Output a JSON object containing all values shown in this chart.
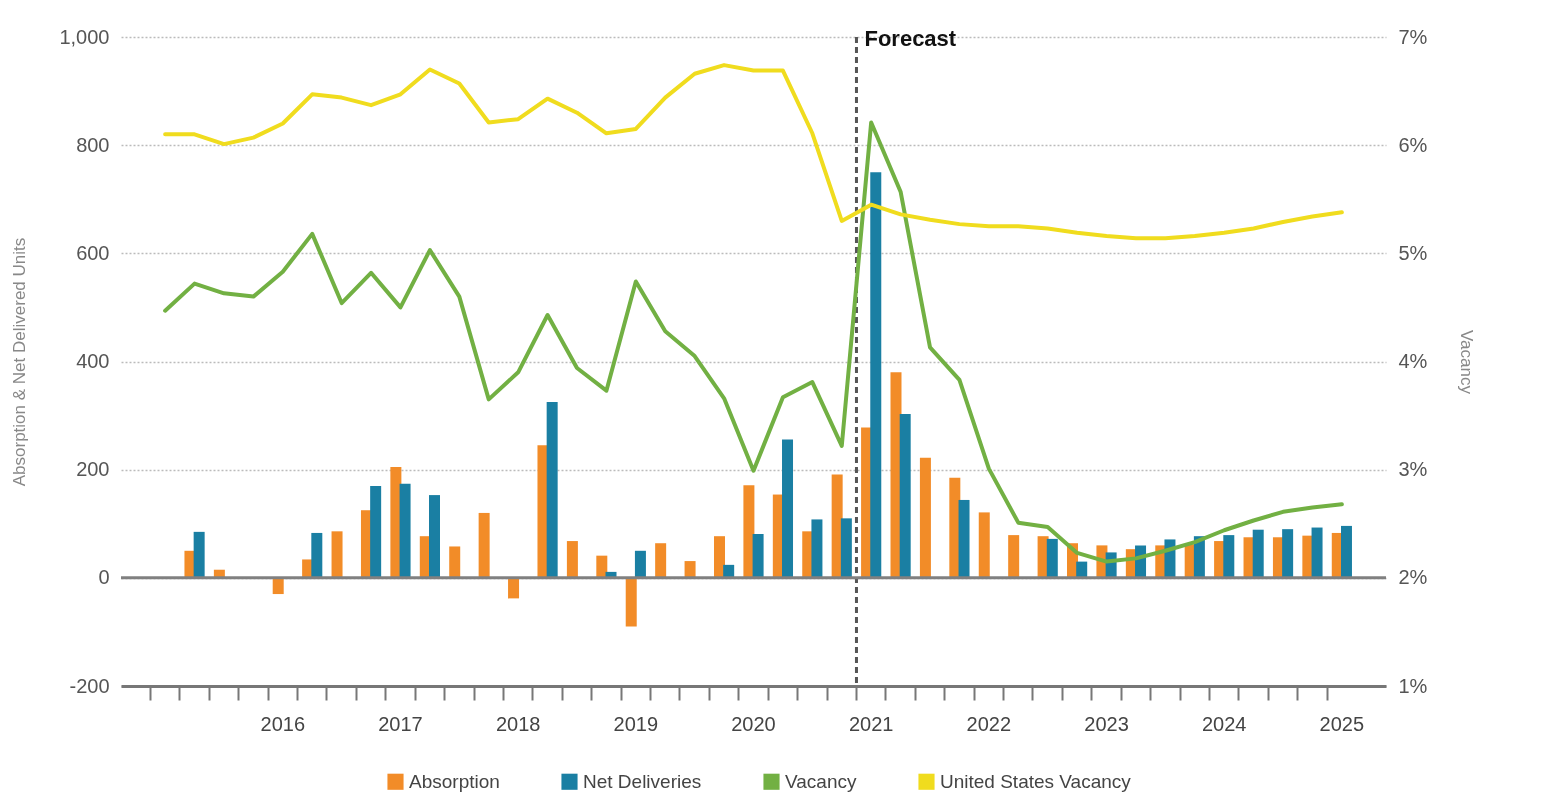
{
  "chart_data": {
    "type": "bar",
    "categories": [
      null,
      null,
      null,
      null,
      "2016",
      null,
      null,
      null,
      "2017",
      null,
      null,
      null,
      "2018",
      null,
      null,
      null,
      "2019",
      null,
      null,
      null,
      "2020",
      null,
      null,
      null,
      "2021",
      null,
      null,
      null,
      "2022",
      null,
      null,
      null,
      "2023",
      null,
      null,
      null,
      "2024",
      null,
      null,
      null,
      "2025"
    ],
    "series": [
      {
        "name": "Absorption",
        "type": "bar",
        "color": "#f28c28",
        "values": [
          null,
          50,
          15,
          null,
          -30,
          34,
          86,
          125,
          205,
          77,
          58,
          120,
          -38,
          245,
          68,
          41,
          -90,
          64,
          31,
          77,
          171,
          154,
          86,
          191,
          278,
          380,
          222,
          185,
          121,
          79,
          77,
          64,
          60,
          53,
          60,
          62,
          68,
          75,
          75,
          78,
          83
        ]
      },
      {
        "name": "Net Deliveries",
        "type": "bar",
        "color": "#1a7fa3",
        "values": [
          0,
          85,
          0,
          0,
          0,
          83,
          0,
          170,
          174,
          153,
          0,
          0,
          0,
          325,
          0,
          11,
          50,
          0,
          0,
          24,
          81,
          256,
          108,
          110,
          750,
          303,
          0,
          144,
          0,
          0,
          72,
          30,
          47,
          60,
          71,
          77,
          79,
          89,
          90,
          93,
          96
        ]
      },
      {
        "name": "Vacancy",
        "type": "line",
        "axis": "y2",
        "color": "#72b043",
        "values": [
          4.47,
          4.72,
          4.63,
          4.6,
          4.83,
          5.18,
          4.54,
          4.82,
          4.5,
          5.03,
          4.6,
          3.65,
          3.9,
          4.43,
          3.94,
          3.73,
          4.74,
          4.28,
          4.05,
          3.66,
          2.99,
          3.67,
          3.81,
          3.22,
          6.21,
          5.57,
          4.13,
          3.83,
          3.01,
          2.51,
          2.47,
          2.23,
          2.15,
          2.18,
          2.25,
          2.33,
          2.44,
          2.53,
          2.61,
          2.65,
          2.68
        ]
      },
      {
        "name": "United States Vacancy",
        "type": "line",
        "axis": "y2",
        "color": "#f0dc1e",
        "values": [
          6.1,
          6.1,
          6.01,
          6.07,
          6.2,
          6.47,
          6.44,
          6.37,
          6.47,
          6.7,
          6.57,
          6.21,
          6.24,
          6.43,
          6.3,
          6.11,
          6.15,
          6.44,
          6.66,
          6.74,
          6.69,
          6.69,
          6.11,
          5.3,
          5.45,
          5.36,
          5.31,
          5.27,
          5.25,
          5.25,
          5.23,
          5.19,
          5.16,
          5.14,
          5.14,
          5.16,
          5.19,
          5.23,
          5.29,
          5.34,
          5.38
        ]
      }
    ],
    "ylabel": "Absorption & Net Delivered Units",
    "y2label": "Vacancy",
    "ylim": [
      -200,
      1000
    ],
    "yticks": [
      -200,
      0,
      200,
      400,
      600,
      800,
      {
        "value": 1000,
        "label": "1,000"
      }
    ],
    "y2lim": [
      1,
      7
    ],
    "y2ticks": [
      {
        "value": 1,
        "label": "1%"
      },
      {
        "value": 2,
        "label": "2%"
      },
      {
        "value": 3,
        "label": "3%"
      },
      {
        "value": 4,
        "label": "4%"
      },
      {
        "value": 5,
        "label": "5%"
      },
      {
        "value": 6,
        "label": "6%"
      },
      {
        "value": 7,
        "label": "7%"
      }
    ],
    "ref_lines": [
      {
        "axis": "x",
        "value": "2021",
        "label": "Forecast",
        "color": "#555555",
        "line_style": "dashed"
      },
      {
        "axis": "y",
        "value": 0,
        "color": "#808080",
        "line_style": "solid"
      }
    ],
    "grid": "y",
    "legend": "bottom",
    "marker": "none",
    "line_style": "solid"
  }
}
